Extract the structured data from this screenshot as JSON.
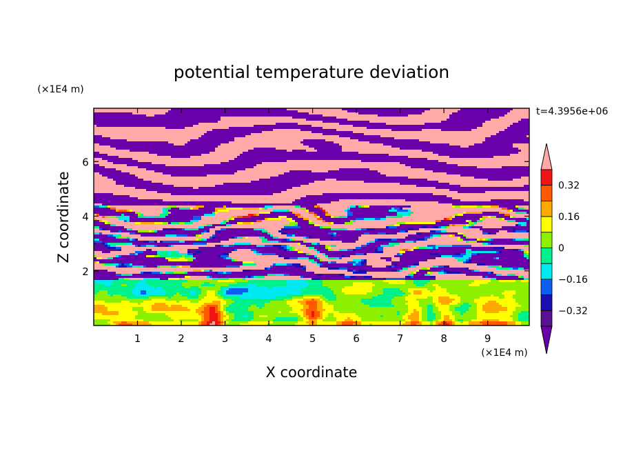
{
  "chart_data": {
    "type": "heatmap",
    "title": "potential temperature deviation",
    "xlabel": "X coordinate",
    "ylabel": "Z coordinate",
    "x_unit": "(×1E4 m)",
    "y_unit": "(×1E4 m)",
    "time_label": "t=4.3956e+06",
    "xlim": [
      0,
      9.95
    ],
    "ylim": [
      0,
      7.95
    ],
    "x_ticks": [
      "1",
      "2",
      "3",
      "4",
      "5",
      "6",
      "7",
      "8",
      "9"
    ],
    "y_ticks": [
      "2",
      "4",
      "6"
    ],
    "colorbar": {
      "labels": [
        "0.32",
        "0.16",
        "0",
        "−0.16",
        "−0.32"
      ],
      "levels": [
        -0.48,
        -0.4,
        -0.32,
        -0.24,
        -0.16,
        -0.08,
        0,
        0.08,
        0.16,
        0.24,
        0.32,
        0.4,
        0.48
      ],
      "colors": [
        "#6a00aa",
        "#5a1095",
        "#1a0fb0",
        "#0a5ef0",
        "#00e8f0",
        "#00f08c",
        "#8cf000",
        "#ffff00",
        "#ffa800",
        "#ff5a00",
        "#f01414",
        "#ffaaa8"
      ]
    },
    "description_bands": [
      {
        "z_range": [
          4.4,
          7.95
        ],
        "pattern": "alternating bands",
        "values": [
          0.48,
          -0.48
        ]
      },
      {
        "z_range": [
          1.7,
          4.4
        ],
        "pattern": "mixed layer",
        "values": [
          -0.4,
          -0.3,
          -0.1,
          0.1,
          0.3,
          0.48
        ]
      },
      {
        "z_range": [
          0,
          1.7
        ],
        "pattern": "turbulent near-zero",
        "values": [
          -0.12,
          -0.05,
          0.05,
          0.15,
          0.3
        ]
      }
    ]
  }
}
